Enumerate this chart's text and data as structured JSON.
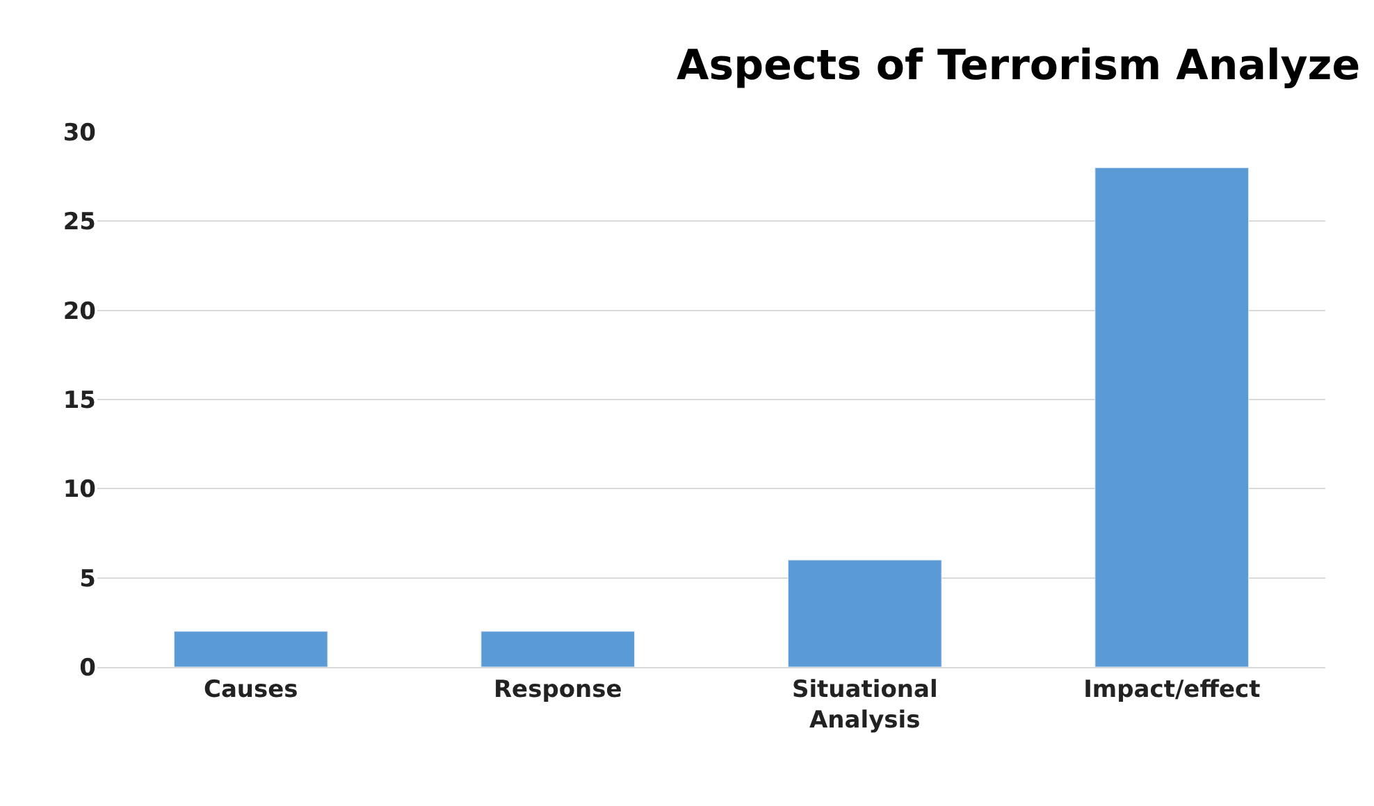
{
  "chart_data": {
    "type": "bar",
    "title": "Aspects of Terrorism Analyze",
    "categories": [
      "Causes",
      "Response",
      "Situational Analysis",
      "Impact/effect"
    ],
    "values": [
      2,
      2,
      6,
      28
    ],
    "color": "#5b9bd5",
    "ylim": [
      0,
      30
    ],
    "yticks": [
      0,
      5,
      10,
      15,
      20,
      25,
      30
    ],
    "grid": "y",
    "legend": false
  }
}
